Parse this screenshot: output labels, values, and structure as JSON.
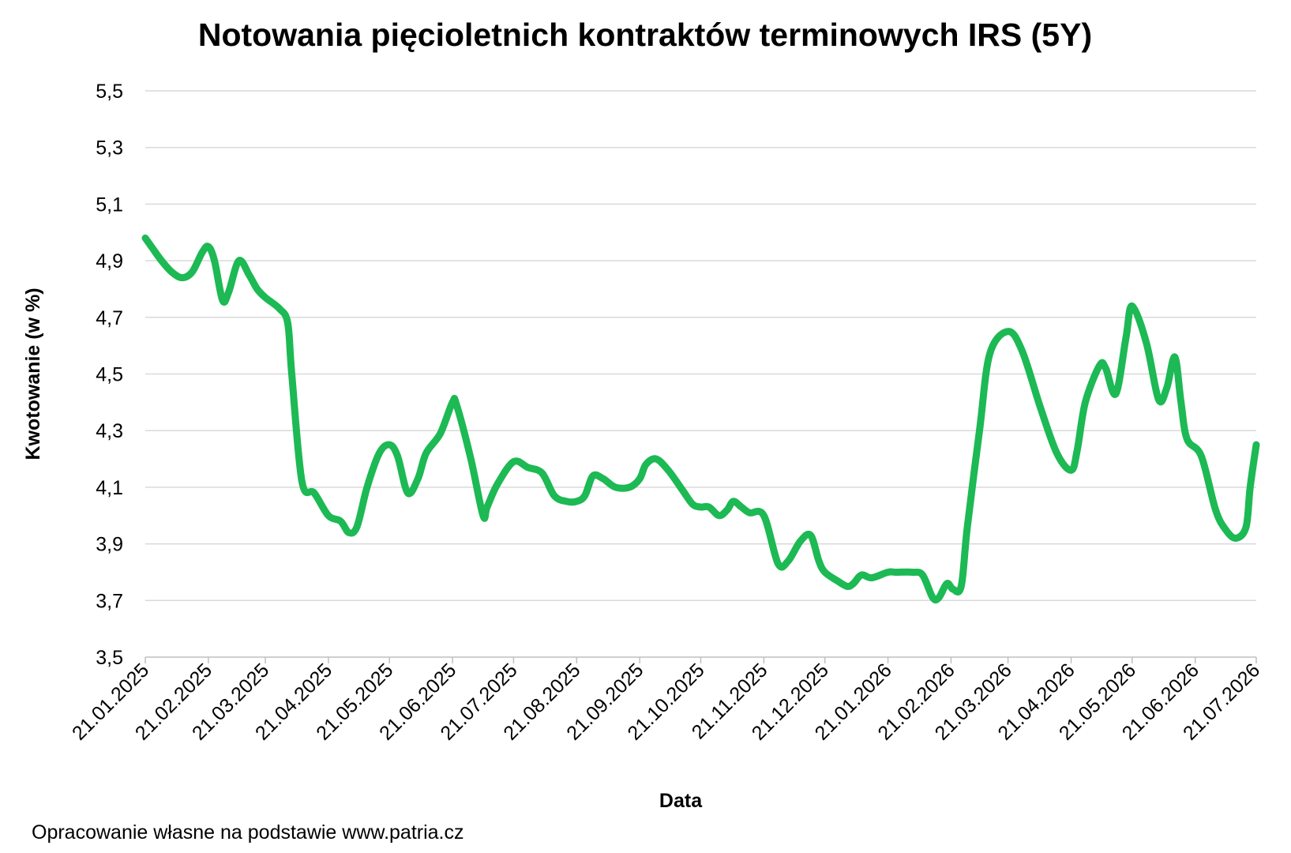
{
  "chart_data": {
    "type": "line",
    "title": "Notowania pięcioletnich kontraktów terminowych IRS (5Y)",
    "xlabel": "Data",
    "ylabel": "Kwotowanie (w %)",
    "source": "Opracowanie własne na podstawie www.patria.cz",
    "ylim": [
      3.5,
      5.5
    ],
    "yticks": [
      "3,5",
      "3,7",
      "3,9",
      "4,1",
      "4,3",
      "4,5",
      "4,7",
      "4,9",
      "5,1",
      "5,3",
      "5,5"
    ],
    "xlim": [
      "2025-01-21",
      "2026-07-21"
    ],
    "xticks": [
      {
        "label": "21.01.2025",
        "date": "2025-01-21"
      },
      {
        "label": "21.02.2025",
        "date": "2025-02-21"
      },
      {
        "label": "21.03.2025",
        "date": "2025-03-21"
      },
      {
        "label": "21.04.2025",
        "date": "2025-04-21"
      },
      {
        "label": "21.05.2025",
        "date": "2025-05-21"
      },
      {
        "label": "21.06.2025",
        "date": "2025-06-21"
      },
      {
        "label": "21.07.2025",
        "date": "2025-07-21"
      },
      {
        "label": "21.08.2025",
        "date": "2025-08-21"
      },
      {
        "label": "21.09.2025",
        "date": "2025-09-21"
      },
      {
        "label": "21.10.2025",
        "date": "2025-10-21"
      },
      {
        "label": "21.11.2025",
        "date": "2025-11-21"
      },
      {
        "label": "21.12.2025",
        "date": "2025-12-21"
      },
      {
        "label": "21.01.2026",
        "date": "2026-01-21"
      },
      {
        "label": "21.02.2026",
        "date": "2026-02-21"
      },
      {
        "label": "21.03.2026",
        "date": "2026-03-21"
      },
      {
        "label": "21.04.2026",
        "date": "2026-04-21"
      },
      {
        "label": "21.05.2026",
        "date": "2026-05-21"
      },
      {
        "label": "21.06.2026",
        "date": "2026-06-21"
      },
      {
        "label": "21.07.2026",
        "date": "2026-07-21"
      }
    ],
    "grid": true,
    "legend": "none",
    "series": [
      {
        "color": "#1db954",
        "points": [
          [
            "2025-01-21",
            4.98
          ],
          [
            "2025-01-24",
            4.95
          ],
          [
            "2025-01-29",
            4.9
          ],
          [
            "2025-02-03",
            4.86
          ],
          [
            "2025-02-08",
            4.84
          ],
          [
            "2025-02-13",
            4.86
          ],
          [
            "2025-02-18",
            4.93
          ],
          [
            "2025-02-21",
            4.95
          ],
          [
            "2025-02-24",
            4.9
          ],
          [
            "2025-02-28",
            4.76
          ],
          [
            "2025-03-03",
            4.79
          ],
          [
            "2025-03-08",
            4.9
          ],
          [
            "2025-03-13",
            4.85
          ],
          [
            "2025-03-17",
            4.8
          ],
          [
            "2025-03-21",
            4.77
          ],
          [
            "2025-03-28",
            4.73
          ],
          [
            "2025-04-01",
            4.68
          ],
          [
            "2025-04-03",
            4.5
          ],
          [
            "2025-04-08",
            4.12
          ],
          [
            "2025-04-14",
            4.08
          ],
          [
            "2025-04-21",
            4.0
          ],
          [
            "2025-04-27",
            3.98
          ],
          [
            "2025-05-01",
            3.94
          ],
          [
            "2025-05-05",
            3.96
          ],
          [
            "2025-05-10",
            4.1
          ],
          [
            "2025-05-16",
            4.22
          ],
          [
            "2025-05-21",
            4.25
          ],
          [
            "2025-05-25",
            4.21
          ],
          [
            "2025-05-30",
            4.08
          ],
          [
            "2025-06-04",
            4.13
          ],
          [
            "2025-06-08",
            4.22
          ],
          [
            "2025-06-15",
            4.29
          ],
          [
            "2025-06-21",
            4.4
          ],
          [
            "2025-06-23",
            4.39
          ],
          [
            "2025-06-30",
            4.2
          ],
          [
            "2025-07-06",
            4.0
          ],
          [
            "2025-07-08",
            4.03
          ],
          [
            "2025-07-13",
            4.11
          ],
          [
            "2025-07-21",
            4.19
          ],
          [
            "2025-07-28",
            4.17
          ],
          [
            "2025-08-04",
            4.15
          ],
          [
            "2025-08-10",
            4.07
          ],
          [
            "2025-08-16",
            4.05
          ],
          [
            "2025-08-21",
            4.05
          ],
          [
            "2025-08-25",
            4.07
          ],
          [
            "2025-08-29",
            4.14
          ],
          [
            "2025-09-03",
            4.13
          ],
          [
            "2025-09-09",
            4.1
          ],
          [
            "2025-09-16",
            4.1
          ],
          [
            "2025-09-21",
            4.13
          ],
          [
            "2025-09-24",
            4.18
          ],
          [
            "2025-09-29",
            4.2
          ],
          [
            "2025-10-05",
            4.16
          ],
          [
            "2025-10-12",
            4.09
          ],
          [
            "2025-10-17",
            4.04
          ],
          [
            "2025-10-21",
            4.03
          ],
          [
            "2025-10-25",
            4.03
          ],
          [
            "2025-10-30",
            4.0
          ],
          [
            "2025-11-03",
            4.02
          ],
          [
            "2025-11-06",
            4.05
          ],
          [
            "2025-11-10",
            4.03
          ],
          [
            "2025-11-14",
            4.01
          ],
          [
            "2025-11-21",
            4.0
          ],
          [
            "2025-11-28",
            3.83
          ],
          [
            "2025-12-03",
            3.84
          ],
          [
            "2025-12-09",
            3.91
          ],
          [
            "2025-12-14",
            3.93
          ],
          [
            "2025-12-18",
            3.84
          ],
          [
            "2025-12-21",
            3.8
          ],
          [
            "2025-12-27",
            3.77
          ],
          [
            "2026-01-01",
            3.75
          ],
          [
            "2026-01-04",
            3.76
          ],
          [
            "2026-01-08",
            3.79
          ],
          [
            "2026-01-13",
            3.78
          ],
          [
            "2026-01-21",
            3.8
          ],
          [
            "2026-01-25",
            3.8
          ],
          [
            "2026-02-02",
            3.8
          ],
          [
            "2026-02-07",
            3.79
          ],
          [
            "2026-02-12",
            3.71
          ],
          [
            "2026-02-15",
            3.71
          ],
          [
            "2026-02-19",
            3.76
          ],
          [
            "2026-02-22",
            3.74
          ],
          [
            "2026-02-26",
            3.75
          ],
          [
            "2026-03-01",
            3.96
          ],
          [
            "2026-03-07",
            4.3
          ],
          [
            "2026-03-12",
            4.57
          ],
          [
            "2026-03-21",
            4.65
          ],
          [
            "2026-03-28",
            4.58
          ],
          [
            "2026-04-06",
            4.38
          ],
          [
            "2026-04-14",
            4.22
          ],
          [
            "2026-04-21",
            4.16
          ],
          [
            "2026-04-24",
            4.23
          ],
          [
            "2026-04-28",
            4.4
          ],
          [
            "2026-05-05",
            4.53
          ],
          [
            "2026-05-08",
            4.52
          ],
          [
            "2026-05-13",
            4.43
          ],
          [
            "2026-05-18",
            4.63
          ],
          [
            "2026-05-21",
            4.74
          ],
          [
            "2026-05-28",
            4.61
          ],
          [
            "2026-06-03",
            4.41
          ],
          [
            "2026-06-07",
            4.45
          ],
          [
            "2026-06-11",
            4.56
          ],
          [
            "2026-06-14",
            4.4
          ],
          [
            "2026-06-17",
            4.27
          ],
          [
            "2026-06-24",
            4.21
          ],
          [
            "2026-07-01",
            4.02
          ],
          [
            "2026-07-06",
            3.95
          ],
          [
            "2026-07-11",
            3.92
          ],
          [
            "2026-07-16",
            3.96
          ],
          [
            "2026-07-18",
            4.1
          ],
          [
            "2026-07-21",
            4.25
          ]
        ]
      }
    ]
  }
}
